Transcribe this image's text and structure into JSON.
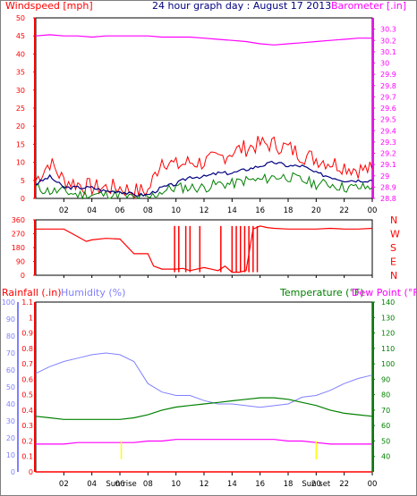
{
  "title": "24 hour graph day : August 17 2013",
  "colors": {
    "wind": "#ff0000",
    "gust": "#008000",
    "avg": "#000080",
    "baro": "#ff00ff",
    "dir": "#ff0000",
    "rain": "#ff0000",
    "humidity": "#8080ff",
    "temp": "#008000",
    "dew": "#ff00ff",
    "sun": "#ffff00",
    "grid": "#c0c0c0",
    "axisDark": "#000000"
  },
  "chart_data": [
    {
      "type": "line",
      "name": "wind",
      "title": "24 hour graph day : August 17 2013",
      "ylabel": "Windspeed [mph]",
      "y2label": "Barometer [.in]",
      "ylim": [
        0,
        50
      ],
      "y2lim": [
        28.8,
        30.4
      ],
      "yticks": [
        "0",
        "5",
        "10",
        "15",
        "20",
        "25",
        "30",
        "35",
        "40",
        "45",
        "50"
      ],
      "y2ticks": [
        "28.8",
        "28.9",
        "29",
        "29.1",
        "29.2",
        "29.3",
        "29.4",
        "29.5",
        "29.6",
        "29.7",
        "29.8",
        "29.9",
        "30",
        "30.1",
        "30.2",
        "30.3"
      ],
      "xticks": [
        "02",
        "04",
        "06",
        "08",
        "10",
        "12",
        "14",
        "16",
        "18",
        "20",
        "22",
        "00"
      ],
      "x_hours": [
        0,
        1,
        2,
        3,
        4,
        5,
        6,
        7,
        8,
        9,
        10,
        11,
        12,
        13,
        14,
        15,
        16,
        17,
        18,
        19,
        20,
        21,
        22,
        23,
        24
      ],
      "wind_high": [
        5,
        10,
        5,
        4,
        3,
        3,
        3,
        2,
        2,
        11,
        9,
        10,
        10,
        11,
        13,
        14,
        15,
        15,
        14,
        12,
        11,
        10,
        9,
        8,
        8
      ],
      "wind_avg": [
        4,
        6,
        3,
        3,
        3,
        2,
        2,
        1,
        1,
        3,
        4,
        6,
        6,
        7,
        7,
        8,
        9,
        10,
        9,
        9,
        7,
        6,
        5,
        5,
        5
      ],
      "wind_low": [
        3,
        2,
        2,
        1,
        1,
        1,
        1,
        0,
        0,
        2,
        3,
        3,
        3,
        4,
        4,
        5,
        5,
        6,
        6,
        5,
        4,
        4,
        3,
        3,
        3
      ],
      "barometer": [
        30.24,
        30.25,
        30.24,
        30.24,
        30.23,
        30.24,
        30.24,
        30.24,
        30.24,
        30.23,
        30.23,
        30.23,
        30.22,
        30.21,
        30.2,
        30.19,
        30.17,
        30.16,
        30.17,
        30.18,
        30.19,
        30.2,
        30.21,
        30.22,
        30.22
      ]
    },
    {
      "type": "line",
      "name": "wind_direction",
      "yticks": [
        "360",
        "270",
        "180",
        "90",
        "0"
      ],
      "compass": [
        "N",
        "W",
        "S",
        "E",
        "N"
      ],
      "ylim": [
        0,
        360
      ],
      "x_hours": [
        0,
        1,
        2,
        3,
        3.6,
        4,
        5,
        6,
        7,
        8,
        8.4,
        9,
        10,
        10.5,
        11,
        11.5,
        12,
        12.5,
        13,
        13.5,
        14,
        14.5,
        15,
        15.5,
        16,
        16.5,
        17,
        18,
        19,
        20,
        21,
        22,
        23,
        24
      ],
      "direction": [
        300,
        300,
        300,
        250,
        220,
        230,
        240,
        235,
        140,
        140,
        60,
        40,
        40,
        45,
        30,
        40,
        50,
        40,
        30,
        60,
        20,
        20,
        30,
        300,
        320,
        310,
        305,
        300,
        300,
        300,
        305,
        300,
        300,
        305
      ]
    },
    {
      "type": "line",
      "name": "temperature_humidity",
      "ylabel": "Rainfall (.in)",
      "ylabel2": "Humidity (%)",
      "y2label": "Temperature (°F)",
      "y2label2": "Dew Point (°F)",
      "humidity_ticks": [
        "0",
        "10",
        "20",
        "30",
        "40",
        "50",
        "60",
        "70",
        "80",
        "90",
        "100"
      ],
      "rain_ticks": [
        "0",
        "0.1",
        "0.2",
        "0.3",
        "0.4",
        "0.5",
        "0.6",
        "0.7",
        "0.8",
        "0.9",
        "1",
        "1.1"
      ],
      "temp_ticks": [
        "40",
        "50",
        "60",
        "70",
        "80",
        "90",
        "100",
        "110",
        "120",
        "130",
        "140"
      ],
      "ylim_humidity": [
        0,
        100
      ],
      "ylim_rain": [
        0,
        1.1
      ],
      "ylim_temp": [
        30,
        140
      ],
      "x_hours": [
        0,
        1,
        2,
        3,
        4,
        5,
        6,
        7,
        8,
        9,
        10,
        11,
        12,
        13,
        14,
        15,
        16,
        17,
        18,
        19,
        20,
        21,
        22,
        23,
        24
      ],
      "humidity": [
        58,
        62,
        65,
        67,
        69,
        70,
        69,
        65,
        52,
        47,
        45,
        45,
        42,
        40,
        40,
        39,
        38,
        39,
        40,
        44,
        45,
        48,
        52,
        55,
        57
      ],
      "temperature": [
        66,
        65,
        64,
        64,
        64,
        64,
        64,
        65,
        67,
        70,
        72,
        73,
        74,
        75,
        76,
        77,
        78,
        78,
        77,
        75,
        73,
        70,
        68,
        67,
        66
      ],
      "dewpoint": [
        48,
        48,
        48,
        49,
        49,
        49,
        49,
        49,
        50,
        50,
        51,
        51,
        51,
        51,
        51,
        51,
        51,
        51,
        50,
        50,
        49,
        48,
        48,
        48,
        48
      ],
      "rain": [
        0,
        0,
        0,
        0,
        0,
        0,
        0,
        0,
        0,
        0,
        0,
        0,
        0,
        0,
        0,
        0,
        0,
        0,
        0,
        0,
        0,
        0,
        0,
        0,
        0
      ],
      "sun_labels": [
        "Sun rise",
        "Sun set"
      ],
      "sun_hours": [
        6.1,
        20.0
      ]
    }
  ]
}
